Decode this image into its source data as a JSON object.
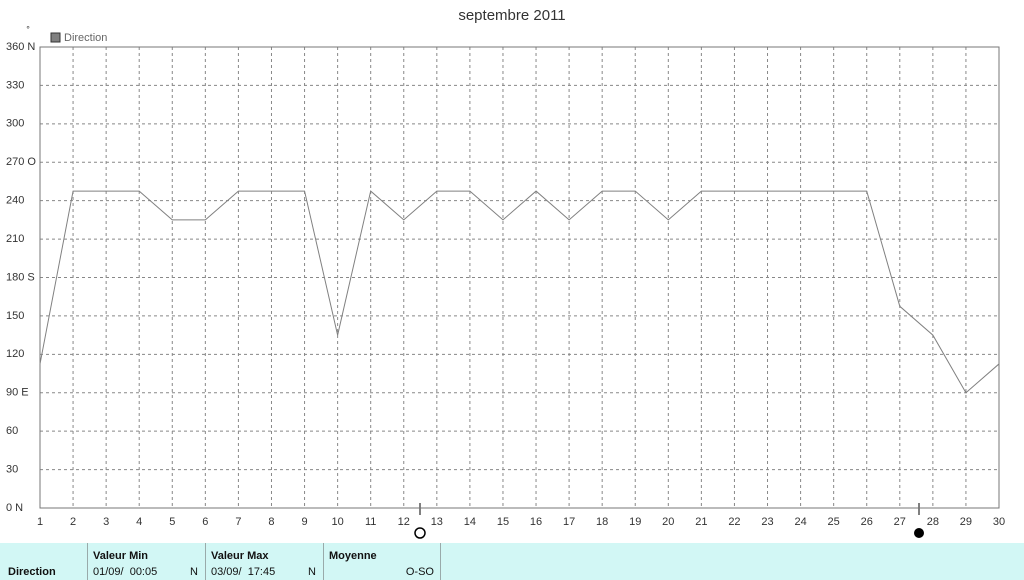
{
  "chart_data": {
    "type": "line",
    "title": "septembre 2011",
    "y_unit": "°",
    "x": [
      1,
      2,
      3,
      4,
      5,
      6,
      7,
      8,
      9,
      10,
      11,
      12,
      13,
      14,
      15,
      16,
      17,
      18,
      19,
      20,
      21,
      22,
      23,
      24,
      25,
      26,
      27,
      28,
      29,
      30
    ],
    "series": [
      {
        "name": "Direction",
        "color": "#808080",
        "values": [
          112.5,
          247.5,
          247.5,
          247.5,
          225,
          225,
          247.5,
          247.5,
          247.5,
          135,
          247.5,
          225,
          247.5,
          247.5,
          225,
          247.5,
          225,
          247.5,
          247.5,
          225,
          247.5,
          247.5,
          247.5,
          247.5,
          247.5,
          247.5,
          157.5,
          135,
          90,
          112.5
        ]
      }
    ],
    "xlim": [
      1,
      30
    ],
    "xticks": [
      1,
      2,
      3,
      4,
      5,
      6,
      7,
      8,
      9,
      10,
      11,
      12,
      13,
      14,
      15,
      16,
      17,
      18,
      19,
      20,
      21,
      22,
      23,
      24,
      25,
      26,
      27,
      28,
      29,
      30
    ],
    "ylim": [
      0,
      360
    ],
    "yticks": [
      {
        "value": 0,
        "label": "0   N"
      },
      30,
      60,
      {
        "value": 90,
        "label": "90  E"
      },
      120,
      150,
      {
        "value": 180,
        "label": "180 S"
      },
      210,
      240,
      {
        "value": 270,
        "label": "270 O"
      },
      300,
      330,
      {
        "value": 360,
        "label": "360 N"
      }
    ],
    "grid": true
  },
  "footer": {
    "row_label": "Direction",
    "min": {
      "title": "Valeur Min",
      "date": "01/09/  00:05",
      "dir": "N"
    },
    "max": {
      "title": "Valeur Max",
      "date": "03/09/  17:45",
      "dir": "N"
    },
    "mean": {
      "title": "Moyenne",
      "dir": "O-SO"
    }
  }
}
